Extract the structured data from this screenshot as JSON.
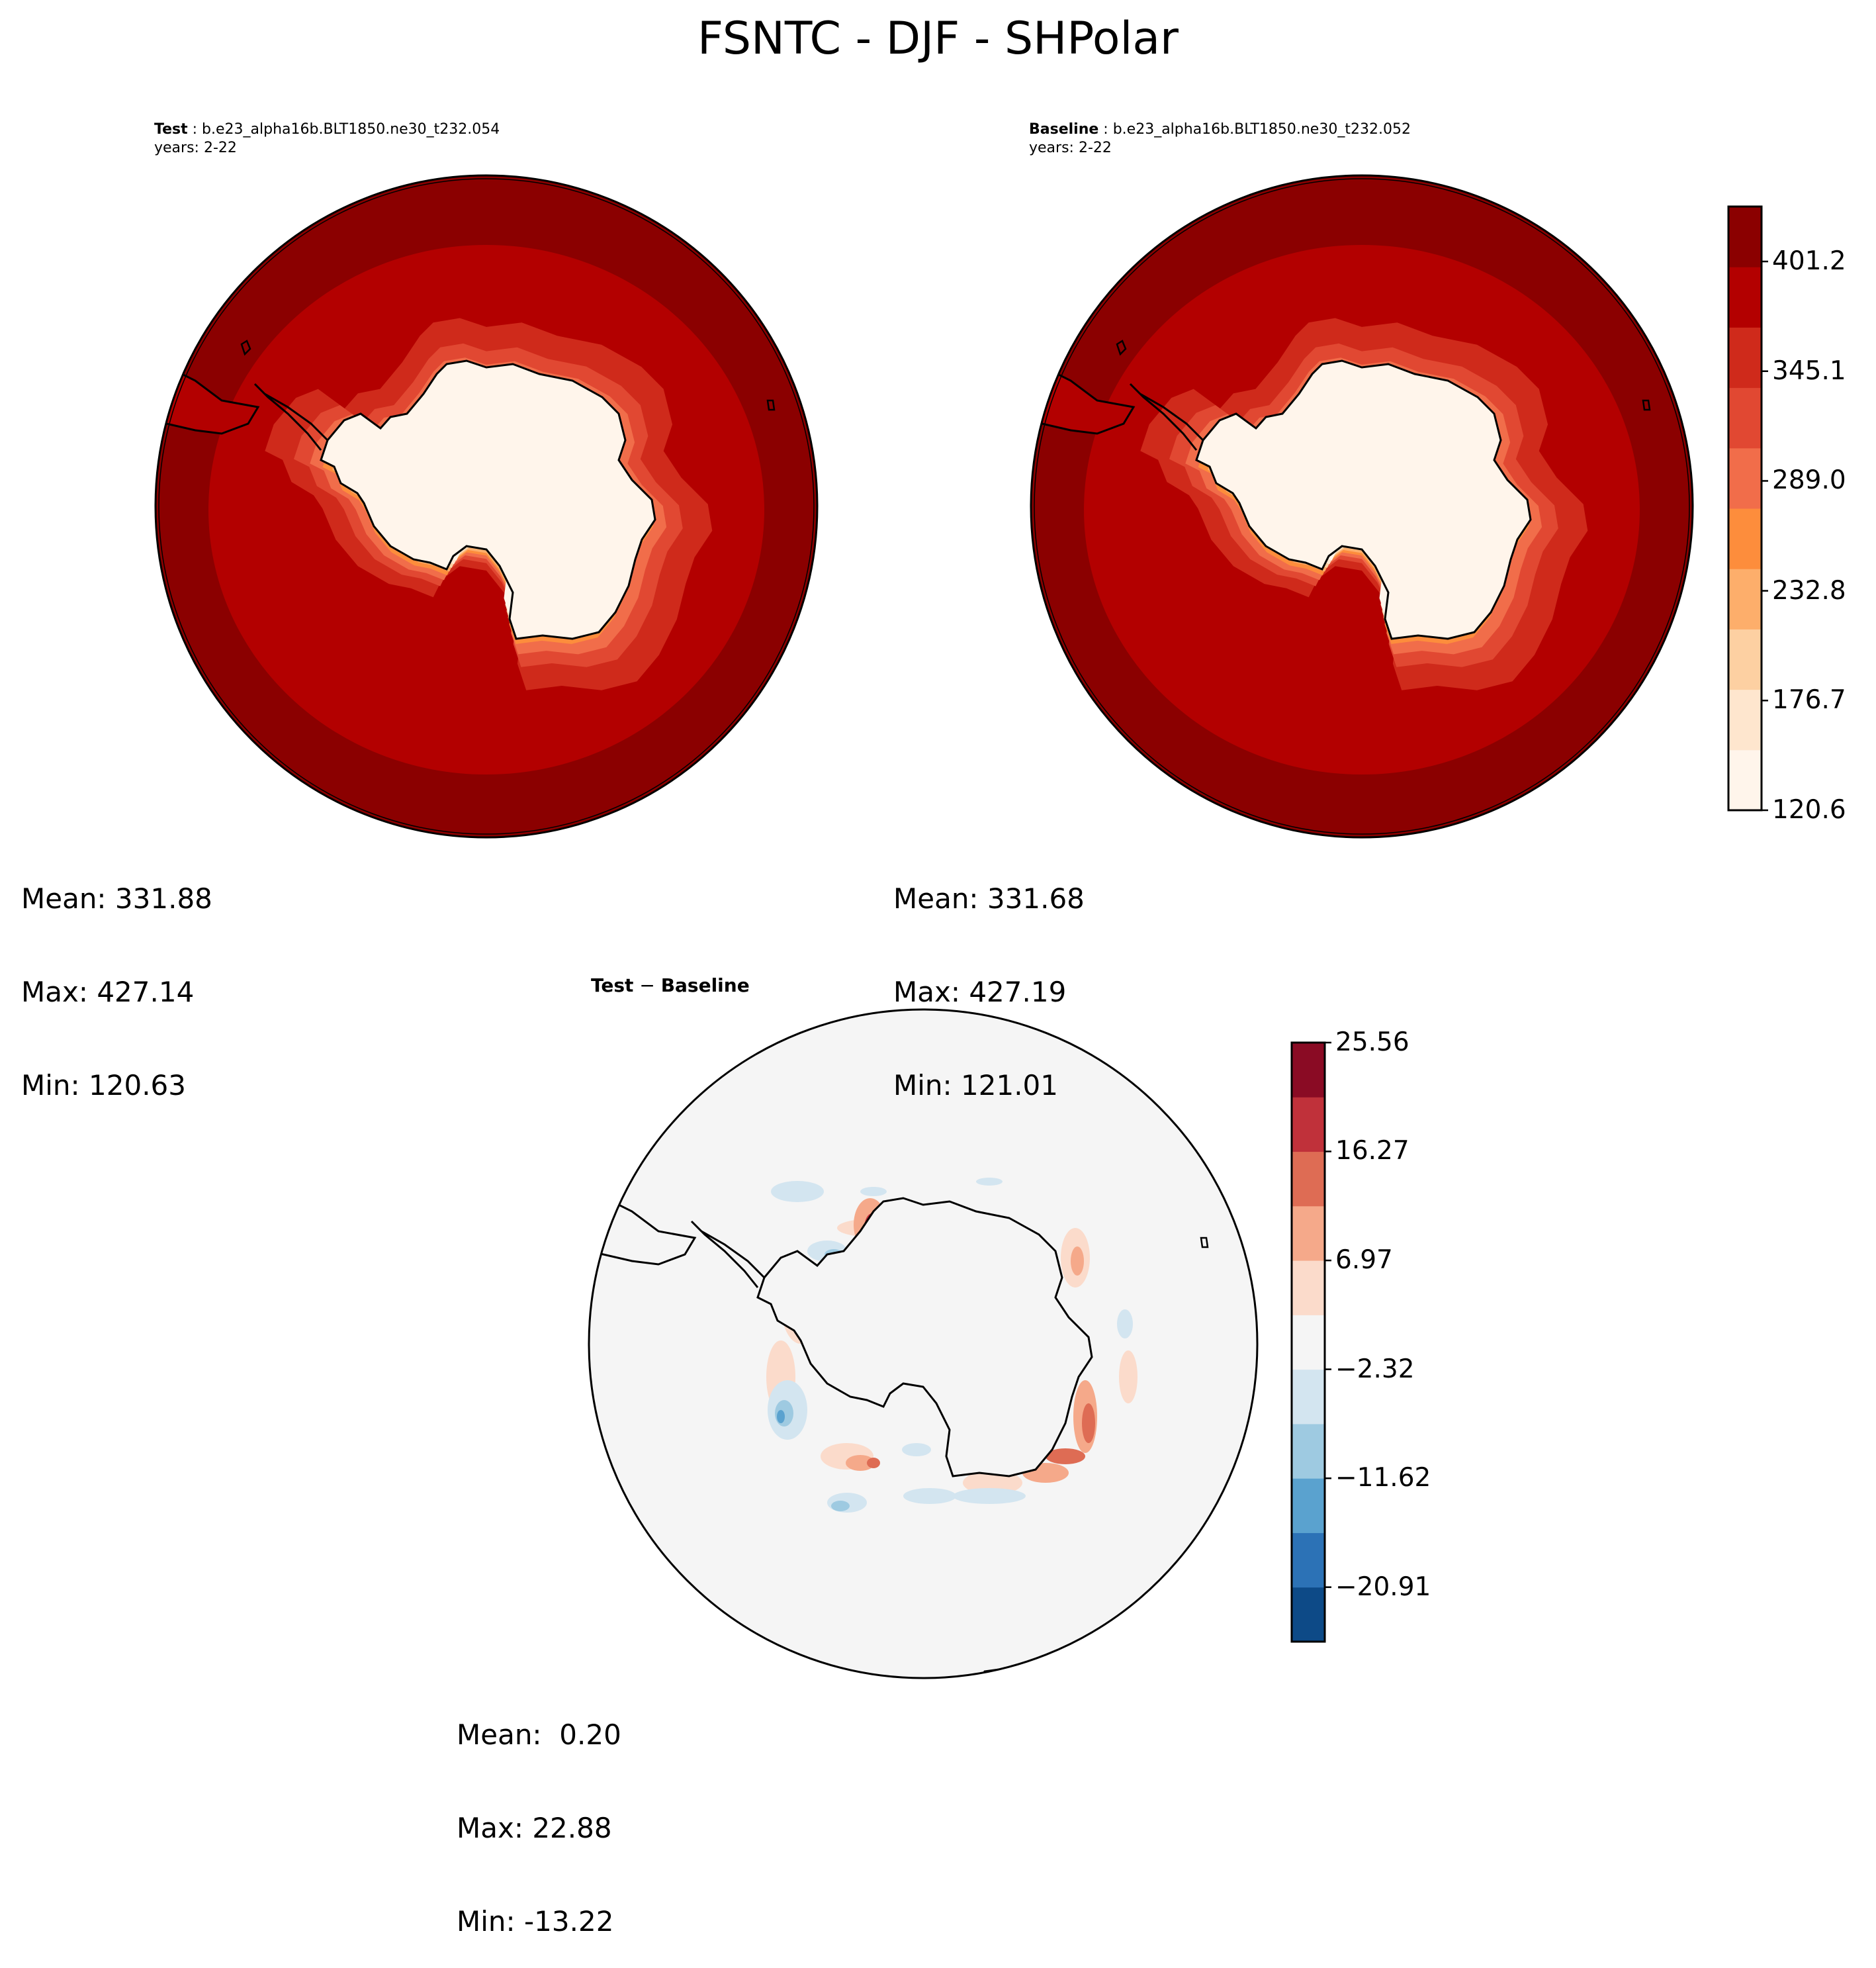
{
  "figure": {
    "title": "FSNTC - DJF - SHPolar"
  },
  "panels": [
    {
      "id": "test",
      "label": "Test",
      "case": "b.e23_alpha16b.BLT1850.ne30_t232.054",
      "years": "years: 2-22",
      "stats": {
        "mean": "Mean: 331.88",
        "max": "Max: 427.14",
        "min": "Min: 120.63"
      }
    },
    {
      "id": "baseline",
      "label": "Baseline",
      "case": "b.e23_alpha16b.BLT1850.ne30_t232.052",
      "years": "years: 2-22",
      "stats": {
        "mean": "Mean: 331.68",
        "max": "Max: 427.19",
        "min": "Min: 121.01"
      }
    },
    {
      "id": "difference",
      "label_left": "Test",
      "label_op": " − ",
      "label_right": "Baseline",
      "stats": {
        "mean": "Mean:  0.20",
        "max": "Max: 22.88",
        "min": "Min: -13.22"
      }
    }
  ],
  "chart_data": [
    {
      "type": "heatmap",
      "projection": "south-polar-stereographic",
      "panel": "test",
      "levels": [
        120.6,
        148.6,
        176.7,
        204.7,
        232.8,
        260.9,
        289.0,
        317.0,
        345.1,
        373.1,
        401.2,
        429.3
      ],
      "colorbar_ticks": [
        "120.6",
        "176.7",
        "232.8",
        "289.0",
        "345.1",
        "401.2"
      ],
      "colors": [
        "#fff5eb",
        "#fee6ce",
        "#fdd0a2",
        "#fdae6b",
        "#fd8d3c",
        "#f16d4a",
        "#e14832",
        "#cf2a1b",
        "#b30000",
        "#8b0000"
      ],
      "mean": 331.88,
      "max": 427.14,
      "min": 120.63
    },
    {
      "type": "heatmap",
      "projection": "south-polar-stereographic",
      "panel": "baseline",
      "levels": [
        120.6,
        148.6,
        176.7,
        204.7,
        232.8,
        260.9,
        289.0,
        317.0,
        345.1,
        373.1,
        401.2,
        429.3
      ],
      "colorbar_ticks": [
        "120.6",
        "176.7",
        "232.8",
        "289.0",
        "345.1",
        "401.2"
      ],
      "colors": [
        "#fff5eb",
        "#fee6ce",
        "#fdd0a2",
        "#fdae6b",
        "#fd8d3c",
        "#f16d4a",
        "#e14832",
        "#cf2a1b",
        "#b30000",
        "#8b0000"
      ],
      "mean": 331.68,
      "max": 427.19,
      "min": 121.01
    },
    {
      "type": "heatmap",
      "projection": "south-polar-stereographic",
      "panel": "difference",
      "levels": [
        -25.56,
        -20.91,
        -16.27,
        -11.62,
        -6.97,
        -2.32,
        2.32,
        6.97,
        11.62,
        16.27,
        20.91,
        25.56
      ],
      "colorbar_ticks": [
        "25.56",
        "16.27",
        "6.97",
        "−2.32",
        "−11.62",
        "−20.91"
      ],
      "colors": [
        "#0d4a87",
        "#2c72b6",
        "#5aa2cf",
        "#9ecae1",
        "#d3e5f0",
        "#f5f5f5",
        "#fbdbcb",
        "#f5a98a",
        "#de6c54",
        "#c0313a",
        "#8a0b24"
      ],
      "mean": 0.2,
      "max": 22.88,
      "min": -13.22
    }
  ]
}
